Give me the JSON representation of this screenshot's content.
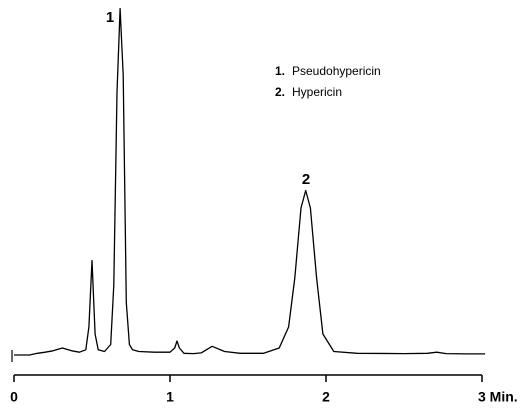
{
  "chart_data": {
    "type": "line",
    "x": [
      0,
      0.1,
      0.15,
      0.2,
      0.25,
      0.31,
      0.37,
      0.42,
      0.46,
      0.48,
      0.5,
      0.52,
      0.54,
      0.58,
      0.62,
      0.64,
      0.66,
      0.68,
      0.7,
      0.72,
      0.74,
      0.76,
      0.8,
      0.9,
      1.0,
      1.03,
      1.045,
      1.06,
      1.09,
      1.15,
      1.2,
      1.27,
      1.35,
      1.45,
      1.6,
      1.7,
      1.76,
      1.8,
      1.84,
      1.87,
      1.9,
      1.94,
      1.98,
      2.05,
      2.2,
      2.5,
      2.65,
      2.71,
      2.77,
      2.9,
      3.02
    ],
    "values": [
      0,
      0,
      0.5,
      0.8,
      1.2,
      2,
      1.2,
      0.8,
      1.5,
      8,
      27,
      6,
      1.5,
      1,
      3,
      20,
      75,
      99,
      80,
      15,
      3,
      1.5,
      1,
      0.8,
      0.8,
      2,
      4,
      2,
      0.5,
      0.4,
      0.6,
      2.5,
      1,
      0.5,
      0.5,
      2,
      8,
      22,
      42,
      47,
      42,
      22,
      6,
      1,
      0.5,
      0.4,
      0.5,
      0.8,
      0.4,
      0.3,
      0.3
    ],
    "color": "#000000",
    "xlim": [
      0,
      3
    ],
    "ylim": [
      0,
      100
    ],
    "xticks": [
      0,
      1,
      2,
      {
        "value": 3,
        "label": "3 Min."
      }
    ],
    "peak_labels": [
      "1",
      "2"
    ],
    "legend": [
      {
        "number": "1.",
        "name": "Pseudohypericin"
      },
      {
        "number": "2.",
        "name": "Hypericin"
      }
    ]
  }
}
